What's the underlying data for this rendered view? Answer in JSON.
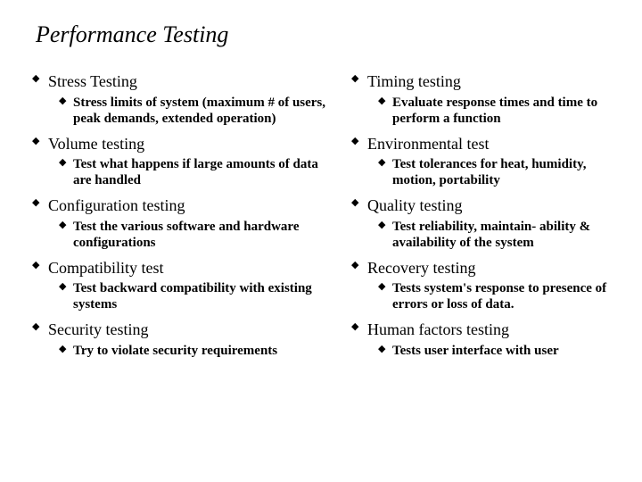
{
  "title": "Performance Testing",
  "bullets": {
    "main": "◆",
    "sub": "◆"
  },
  "colors": {
    "text": "#000000",
    "background": "#ffffff"
  },
  "left": [
    {
      "heading": "Stress Testing",
      "sub": "Stress limits of system (maximum # of users, peak demands, extended operation)"
    },
    {
      "heading": "Volume testing",
      "sub": "Test what happens if large amounts of data are handled"
    },
    {
      "heading": "Configuration testing",
      "sub": "Test the various software and hardware configurations"
    },
    {
      "heading": "Compatibility test",
      "sub": "Test backward compatibility with existing systems"
    },
    {
      "heading": "Security testing",
      "sub": "Try to violate security requirements"
    }
  ],
  "right": [
    {
      "heading": "Timing testing",
      "sub": "Evaluate response times and time to perform a function"
    },
    {
      "heading": "Environmental test",
      "sub": "Test tolerances for heat, humidity, motion, portability"
    },
    {
      "heading": "Quality testing",
      "sub": "Test reliability, maintain- ability & availability of the system"
    },
    {
      "heading": "Recovery testing",
      "sub": "Tests system's response to presence of errors or loss of data."
    },
    {
      "heading": "Human factors testing",
      "sub": "Tests user interface with user"
    }
  ]
}
